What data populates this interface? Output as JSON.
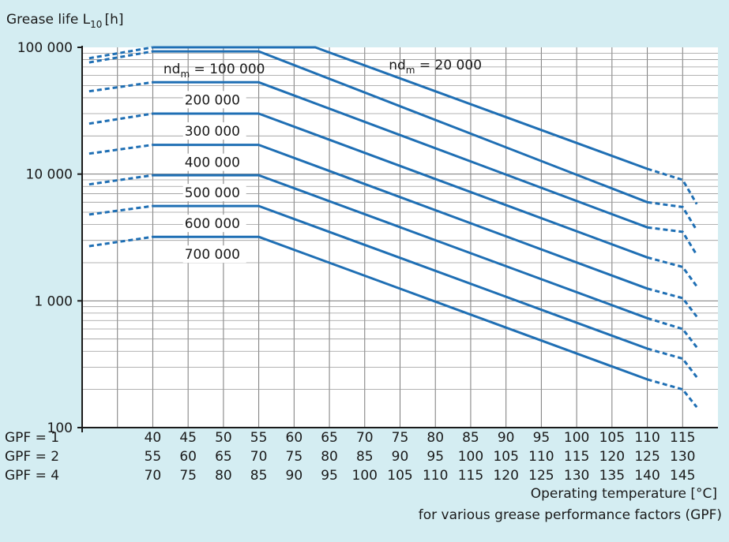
{
  "chart_data": {
    "type": "line",
    "yscale": "log",
    "ylim": [
      100,
      100000
    ],
    "xlim": [
      30,
      120
    ],
    "y_title_main": "Grease life L",
    "y_title_sub": "10",
    "y_title_unit": "[h]",
    "y_ticks": [
      {
        "value": 100,
        "label": "100"
      },
      {
        "value": 1000,
        "label": "1 000"
      },
      {
        "value": 10000,
        "label": "10 000"
      },
      {
        "value": 100000,
        "label": "100 000"
      }
    ],
    "x_rows": [
      {
        "prefix": "GPF = 1",
        "ticks": [
          "40",
          "45",
          "50",
          "55",
          "60",
          "65",
          "70",
          "75",
          "80",
          "85",
          "90",
          "95",
          "100",
          "105",
          "110",
          "115"
        ]
      },
      {
        "prefix": "GPF = 2",
        "ticks": [
          "55",
          "60",
          "65",
          "70",
          "75",
          "80",
          "85",
          "90",
          "95",
          "100",
          "105",
          "110",
          "115",
          "120",
          "125",
          "130"
        ]
      },
      {
        "prefix": "GPF = 4",
        "ticks": [
          "70",
          "75",
          "80",
          "85",
          "90",
          "95",
          "100",
          "105",
          "110",
          "115",
          "120",
          "125",
          "130",
          "135",
          "140",
          "145"
        ]
      }
    ],
    "xlabel_line1": "Operating temperature [°C]",
    "xlabel_line2": "for various grease performance factors (GPF)",
    "label_prefix": "nd",
    "label_sub": "m",
    "series": [
      {
        "name": "20 000",
        "label_full": true,
        "solid": [
          [
            40,
            100000
          ],
          [
            63,
            100000
          ],
          [
            110,
            11000
          ]
        ],
        "dash_start": [
          [
            31,
            82000
          ],
          [
            40,
            100000
          ]
        ],
        "dash_end": [
          [
            110,
            11000
          ],
          [
            115,
            9000
          ],
          [
            117,
            5800
          ]
        ]
      },
      {
        "name": "100 000",
        "label_full": true,
        "solid": [
          [
            40,
            93000
          ],
          [
            55,
            93000
          ],
          [
            110,
            6000
          ]
        ],
        "dash_start": [
          [
            31,
            76000
          ],
          [
            40,
            93000
          ]
        ],
        "dash_end": [
          [
            110,
            6000
          ],
          [
            115,
            5500
          ],
          [
            117,
            3600
          ]
        ]
      },
      {
        "name": "200 000",
        "solid": [
          [
            40,
            53000
          ],
          [
            55,
            53000
          ],
          [
            110,
            3800
          ]
        ],
        "dash_start": [
          [
            31,
            45000
          ],
          [
            40,
            53000
          ]
        ],
        "dash_end": [
          [
            110,
            3800
          ],
          [
            115,
            3500
          ],
          [
            117,
            2300
          ]
        ]
      },
      {
        "name": "300 000",
        "solid": [
          [
            40,
            30000
          ],
          [
            55,
            30000
          ],
          [
            110,
            2200
          ]
        ],
        "dash_start": [
          [
            31,
            25000
          ],
          [
            40,
            30000
          ]
        ],
        "dash_end": [
          [
            110,
            2200
          ],
          [
            115,
            1850
          ],
          [
            117,
            1300
          ]
        ]
      },
      {
        "name": "400 000",
        "solid": [
          [
            40,
            17000
          ],
          [
            55,
            17000
          ],
          [
            110,
            1250
          ]
        ],
        "dash_start": [
          [
            31,
            14500
          ],
          [
            40,
            17000
          ]
        ],
        "dash_end": [
          [
            110,
            1250
          ],
          [
            115,
            1050
          ],
          [
            117,
            750
          ]
        ]
      },
      {
        "name": "500 000",
        "solid": [
          [
            40,
            9800
          ],
          [
            55,
            9800
          ],
          [
            110,
            730
          ]
        ],
        "dash_start": [
          [
            31,
            8300
          ],
          [
            40,
            9800
          ]
        ],
        "dash_end": [
          [
            110,
            730
          ],
          [
            115,
            600
          ],
          [
            117,
            430
          ]
        ]
      },
      {
        "name": "600 000",
        "solid": [
          [
            40,
            5600
          ],
          [
            55,
            5600
          ],
          [
            110,
            420
          ]
        ],
        "dash_start": [
          [
            31,
            4800
          ],
          [
            40,
            5600
          ]
        ],
        "dash_end": [
          [
            110,
            420
          ],
          [
            115,
            350
          ],
          [
            117,
            250
          ]
        ]
      },
      {
        "name": "700 000",
        "solid": [
          [
            40,
            3200
          ],
          [
            55,
            3200
          ],
          [
            110,
            240
          ]
        ],
        "dash_start": [
          [
            31,
            2700
          ],
          [
            40,
            3200
          ]
        ],
        "dash_end": [
          [
            110,
            240
          ],
          [
            115,
            200
          ],
          [
            117,
            145
          ]
        ]
      }
    ]
  }
}
